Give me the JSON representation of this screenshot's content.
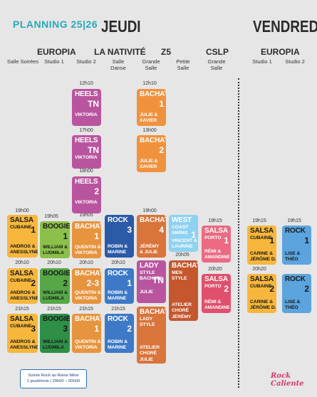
{
  "header": {
    "planning": "PLANNING 25|26",
    "day1": "JEUDI",
    "day2": "VENDREDI"
  },
  "venues": [
    {
      "label": "EUROPIA"
    },
    {
      "label": "LA NATIVITÉ"
    },
    {
      "label": "Z5"
    },
    {
      "label": "CSLP"
    },
    {
      "label": "EUROPIA"
    }
  ],
  "rooms": [
    {
      "label": "Salle Soirées"
    },
    {
      "label": "Studio 1"
    },
    {
      "label": "Studio 2"
    },
    {
      "label": "Salle Danse"
    },
    {
      "label": "Grande Salle"
    },
    {
      "label": "Petite Salle"
    },
    {
      "label": "Grande Salle"
    },
    {
      "label": "Studio 1"
    },
    {
      "label": "Studio 2"
    }
  ],
  "times": [
    {
      "t": "12h10"
    },
    {
      "t": "12h10"
    },
    {
      "t": "17h00"
    },
    {
      "t": "13h00"
    },
    {
      "t": "18h00"
    },
    {
      "t": "19h00"
    },
    {
      "t": "19h05"
    },
    {
      "t": "19h05"
    },
    {
      "t": "19h00"
    },
    {
      "t": "19h15"
    },
    {
      "t": "19h15"
    },
    {
      "t": "19h15"
    },
    {
      "t": "20h10"
    },
    {
      "t": "20h10"
    },
    {
      "t": "20h10"
    },
    {
      "t": "20h10"
    },
    {
      "t": "20h05"
    },
    {
      "t": "20h20"
    },
    {
      "t": "20h20"
    },
    {
      "t": "21h15"
    },
    {
      "t": "21h15"
    },
    {
      "t": "21h15"
    },
    {
      "t": "21h15"
    }
  ],
  "cards": [
    {
      "name": "HEELS",
      "num": "TN",
      "sub": "VIKTORIA",
      "color": "#b9559f"
    },
    {
      "name": "HEELS",
      "num": "TN",
      "sub": "VIKTORIA",
      "color": "#b9559f"
    },
    {
      "name": "HEELS",
      "num": "2",
      "sub": "VIKTORIA",
      "color": "#b9559f"
    },
    {
      "name": "BACHATA",
      "num": "1",
      "sub": "JULIE &",
      "sub2": "XAVIER",
      "color": "#f0923d"
    },
    {
      "name": "BACHATA",
      "num": "2",
      "sub": "JULIE &",
      "sub2": "XAVIER",
      "color": "#f0923d"
    },
    {
      "name": "SALSA",
      "sub0": "CUBAINE",
      "num": "1",
      "sub": "ANDROS &",
      "sub2": "ANESSLYNE",
      "color": "#f6b73c",
      "dark": true
    },
    {
      "name": "SALSA",
      "sub0": "CUBAINE",
      "num": "2",
      "sub": "ANDROS &",
      "sub2": "ANESSLYNE",
      "color": "#f6b73c",
      "dark": true
    },
    {
      "name": "SALSA",
      "sub0": "CUBAINE",
      "num": "3",
      "sub": "ANDROS &",
      "sub2": "ANESSLYNE",
      "color": "#f6b73c",
      "dark": true
    },
    {
      "name": "BOOGIE",
      "num": "1",
      "sub": "WILLIAM &",
      "sub2": "LUDMILA",
      "color": "#8cc04a",
      "dark": true
    },
    {
      "name": "BOOGIE",
      "num": "2",
      "sub": "WILLIAM &",
      "sub2": "LUDMILA",
      "color": "#55a845",
      "dark": true
    },
    {
      "name": "BOOGIE",
      "num": "3",
      "sub": "WILLIAM &",
      "sub2": "LUDMILA",
      "color": "#2e8f46",
      "dark": true
    },
    {
      "name": "BACHATA",
      "num": "1",
      "sub": "QUENTIN &",
      "sub2": "VIKTORIA",
      "color": "#e7943f"
    },
    {
      "name": "BACHATA",
      "num": "2-3",
      "sub": "QUENTIN &",
      "sub2": "VIKTORIA",
      "color": "#e7943f"
    },
    {
      "name": "BACHATA",
      "num": "1",
      "sub": "QUENTIN &",
      "sub2": "VIKTORIA",
      "color": "#e7943f"
    },
    {
      "name": "ROCK",
      "num": "3",
      "sub": "ROBIN &",
      "sub2": "MARINE",
      "color": "#2b5aa6"
    },
    {
      "name": "ROCK",
      "num": "1",
      "sub": "ROBIN &",
      "sub2": "MARINE",
      "color": "#3d79c6"
    },
    {
      "name": "ROCK",
      "num": "2",
      "sub": "ROBIN &",
      "sub2": "MARINE",
      "color": "#3d79c6"
    },
    {
      "name": "BACHATA",
      "num": "4",
      "sub": "JÉRÉMY",
      "sub2": "& JULIE",
      "color": "#d9743a"
    },
    {
      "name": "LADY",
      "sub0": "STYLE",
      "sub1": "BACHATA",
      "num": "TN",
      "sub": "JULIE",
      "color": "#b9559f"
    },
    {
      "name": "BACHATA",
      "sub0": "LADY",
      "sub1": "STYLE",
      "num": "",
      "sub": "ATELIER",
      "sub2": "CHORÉ",
      "sub3": "JULIE",
      "color": "#d9743a"
    },
    {
      "name": "WEST",
      "sub0": "COAST",
      "sub1": "SWING",
      "num": "1",
      "sub": "VINCENT &",
      "sub2": "LAURINE",
      "color": "#8fd1f0"
    },
    {
      "name": "BACHATA",
      "sub0": "MEN",
      "sub1": "STYLE",
      "num": "",
      "sub": "ATELIER",
      "sub2": "CHORÉ",
      "sub3": "JÉRÉMY",
      "color": "#c4572d"
    },
    {
      "name": "SALSA",
      "sub0": "PORTO",
      "num": "1",
      "sub": "RÉMI &",
      "sub2": "AMANDINE",
      "color": "#ea6b82"
    },
    {
      "name": "SALSA",
      "sub0": "PORTO",
      "num": "2",
      "sub": "RÉMI &",
      "sub2": "AMANDINE",
      "color": "#e0506d"
    },
    {
      "name": "SALSA",
      "sub0": "CUBAINE",
      "num": "1",
      "sub": "CARINE &",
      "sub2": "JÉRÔME D.",
      "color": "#f6b73c",
      "dark": true
    },
    {
      "name": "SALSA",
      "sub0": "CUBAINE",
      "num": "2",
      "sub": "CARINE &",
      "sub2": "JÉRÔME D.",
      "color": "#f6b73c",
      "dark": true
    },
    {
      "name": "ROCK",
      "num": "1",
      "sub": "LISE &",
      "sub2": "THÉO",
      "color": "#5ca4dd",
      "dark": true
    },
    {
      "name": "ROCK",
      "num": "2",
      "sub": "LISE &",
      "sub2": "THÉO",
      "color": "#5ca4dd",
      "dark": true
    }
  ],
  "note": {
    "line1": "Soirée Rock au Reine Mère",
    "line2": "1 jeudi/mois | 20h00 – 00h00"
  },
  "logo": "Rock Caliente"
}
